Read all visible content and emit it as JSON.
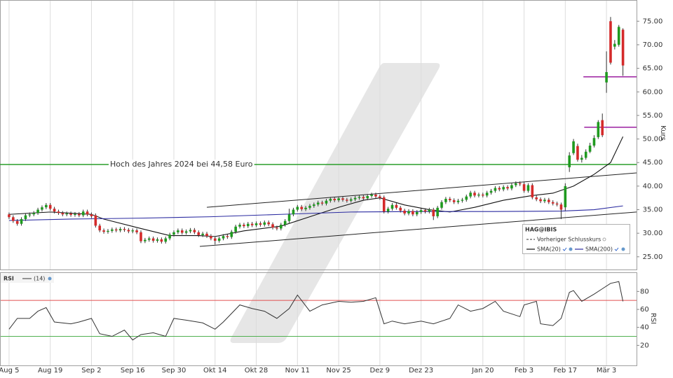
{
  "chart_data": {
    "type": "candlestick",
    "axis_label": "Kurs",
    "xlim": [
      -2.2,
      152.3
    ],
    "xticks": [
      {
        "value": 0,
        "label": "Aug 5"
      },
      {
        "value": 10,
        "label": "Aug 19"
      },
      {
        "value": 20,
        "label": "Sep 2"
      },
      {
        "value": 30,
        "label": "Sep 16"
      },
      {
        "value": 40,
        "label": "Sep 30"
      },
      {
        "value": 50,
        "label": "Okt 14"
      },
      {
        "value": 60,
        "label": "Okt 28"
      },
      {
        "value": 70,
        "label": "Nov 11"
      },
      {
        "value": 80,
        "label": "Nov 25"
      },
      {
        "value": 90,
        "label": "Dez 9"
      },
      {
        "value": 100,
        "label": "Dez 23"
      },
      {
        "value": 115,
        "label": "Jan 20"
      },
      {
        "value": 125,
        "label": "Feb 3"
      },
      {
        "value": 135,
        "label": "Feb 17"
      },
      {
        "value": 145,
        "label": "Mär 3"
      }
    ],
    "ylim": [
      22.3,
      79.5
    ],
    "yticks": [
      {
        "value": 25,
        "label": "25.00"
      },
      {
        "value": 30,
        "label": "30.00"
      },
      {
        "value": 35,
        "label": "35.00"
      },
      {
        "value": 40,
        "label": "40.00"
      },
      {
        "value": 45,
        "label": "45.00"
      },
      {
        "value": 50,
        "label": "50.00"
      },
      {
        "value": 55,
        "label": "55.00"
      },
      {
        "value": 60,
        "label": "60.00"
      },
      {
        "value": 65,
        "label": "65.00"
      },
      {
        "value": 70,
        "label": "70.00"
      },
      {
        "value": 75,
        "label": "75.00"
      }
    ],
    "up_color": "#1f9a1f",
    "down_color": "#d42a2a",
    "open": [
      34.0,
      33.4,
      32.6,
      32.0,
      33.0,
      33.8,
      34.0,
      34.3,
      35.0,
      35.5,
      36.0,
      35.2,
      34.6,
      34.3,
      34.0,
      34.2,
      33.9,
      34.1,
      33.8,
      34.6,
      34.0,
      33.8,
      31.6,
      30.6,
      30.3,
      30.5,
      30.8,
      30.6,
      30.9,
      30.7,
      30.4,
      30.6,
      30.2,
      28.3,
      28.6,
      28.9,
      28.4,
      28.7,
      28.2,
      28.9,
      29.7,
      30.2,
      30.6,
      30.1,
      30.4,
      30.7,
      30.2,
      29.6,
      29.9,
      29.4,
      28.9,
      28.4,
      28.9,
      29.4,
      29.2,
      30.3,
      31.4,
      31.8,
      31.5,
      32.0,
      31.7,
      32.1,
      31.8,
      32.3,
      31.9,
      31.2,
      31.0,
      31.8,
      32.6,
      34.0,
      35.0,
      35.6,
      35.1,
      35.4,
      35.8,
      36.1,
      36.5,
      36.3,
      36.9,
      37.3,
      37.0,
      37.4,
      37.1,
      36.9,
      37.2,
      37.5,
      37.7,
      37.4,
      37.9,
      38.2,
      37.8,
      37.6,
      34.6,
      35.2,
      36.0,
      35.4,
      34.8,
      34.2,
      34.7,
      34.0,
      34.5,
      34.9,
      34.6,
      35.0,
      33.6,
      35.4,
      36.6,
      37.3,
      37.0,
      36.6,
      36.9,
      37.1,
      37.8,
      38.6,
      38.0,
      38.2,
      38.0,
      38.6,
      39.0,
      39.6,
      39.3,
      39.8,
      39.5,
      40.2,
      40.6,
      40.4,
      39.0,
      40.2,
      37.6,
      37.2,
      36.8,
      37.1,
      36.6,
      36.3,
      36.1,
      35.5,
      44.0,
      47.0,
      48.5,
      45.6,
      46.0,
      47.3,
      48.6,
      50.4,
      54.0,
      62.0,
      75.0,
      69.6,
      70.0,
      73.2
    ],
    "high": [
      34.4,
      33.8,
      33.0,
      33.4,
      34.2,
      34.4,
      34.7,
      35.4,
      35.9,
      36.4,
      36.4,
      35.6,
      35.0,
      34.7,
      34.6,
      34.6,
      34.5,
      34.5,
      35.0,
      35.0,
      34.4,
      34.2,
      32.0,
      31.0,
      30.9,
      31.2,
      31.2,
      31.3,
      31.3,
      31.1,
      31.0,
      31.0,
      30.6,
      29.0,
      29.3,
      29.3,
      29.1,
      29.1,
      29.3,
      30.1,
      30.6,
      31.0,
      31.0,
      30.8,
      31.1,
      31.1,
      30.6,
      30.3,
      30.3,
      29.8,
      29.3,
      29.3,
      29.8,
      29.8,
      30.7,
      31.8,
      32.2,
      32.2,
      32.4,
      32.4,
      32.5,
      32.5,
      32.7,
      32.7,
      32.3,
      31.6,
      32.2,
      33.0,
      35.2,
      35.4,
      36.0,
      36.0,
      35.8,
      36.2,
      36.5,
      36.9,
      36.9,
      37.3,
      37.7,
      37.7,
      37.8,
      37.8,
      37.5,
      37.6,
      37.9,
      38.1,
      38.1,
      38.3,
      38.6,
      38.6,
      38.2,
      38.0,
      35.6,
      36.4,
      36.4,
      35.8,
      35.2,
      35.1,
      35.1,
      34.9,
      35.3,
      35.3,
      35.4,
      35.4,
      35.8,
      37.0,
      37.7,
      37.7,
      37.4,
      37.3,
      37.5,
      38.2,
      39.0,
      39.0,
      38.6,
      38.6,
      39.0,
      39.4,
      40.0,
      40.0,
      40.2,
      40.2,
      40.6,
      41.0,
      41.0,
      40.8,
      40.6,
      40.6,
      38.0,
      37.6,
      37.5,
      37.5,
      37.0,
      36.7,
      36.5,
      40.6,
      47.2,
      50.0,
      49.0,
      46.6,
      47.8,
      49.2,
      50.8,
      54.0,
      55.4,
      68.6,
      75.9,
      71.0,
      74.2,
      73.5
    ],
    "low": [
      33.0,
      32.2,
      31.6,
      31.6,
      32.6,
      33.4,
      33.6,
      33.9,
      34.6,
      35.1,
      34.8,
      34.2,
      33.9,
      33.6,
      33.6,
      33.5,
      33.5,
      33.4,
      33.4,
      33.6,
      33.2,
      31.2,
      30.2,
      29.9,
      29.9,
      30.1,
      30.2,
      30.2,
      30.3,
      30.0,
      30.0,
      29.8,
      27.9,
      27.9,
      28.2,
      28.0,
      28.0,
      27.8,
      27.8,
      28.5,
      29.3,
      29.8,
      29.7,
      29.7,
      30.0,
      29.8,
      29.2,
      29.2,
      29.0,
      28.5,
      27.6,
      28.0,
      28.5,
      28.8,
      28.8,
      29.9,
      31.0,
      31.1,
      31.1,
      31.3,
      31.3,
      31.4,
      31.4,
      31.5,
      30.8,
      30.6,
      30.6,
      31.4,
      32.2,
      33.6,
      34.6,
      34.7,
      34.7,
      35.0,
      35.4,
      35.7,
      35.9,
      35.9,
      36.5,
      36.6,
      36.6,
      36.7,
      36.5,
      36.5,
      36.8,
      37.1,
      37.0,
      37.0,
      37.5,
      37.4,
      37.1,
      34.2,
      34.2,
      34.8,
      35.0,
      34.4,
      33.8,
      33.8,
      33.6,
      33.6,
      34.1,
      34.2,
      34.2,
      32.8,
      33.2,
      35.0,
      36.2,
      36.6,
      36.2,
      36.2,
      36.5,
      36.7,
      37.4,
      37.6,
      37.6,
      37.6,
      37.6,
      38.2,
      38.6,
      38.9,
      38.9,
      39.1,
      39.1,
      39.8,
      40.0,
      38.6,
      38.6,
      37.2,
      36.8,
      36.4,
      36.4,
      36.2,
      35.9,
      35.7,
      33.0,
      34.8,
      43.0,
      46.6,
      45.2,
      45.0,
      45.6,
      47.0,
      48.2,
      50.0,
      50.4,
      59.8,
      65.8,
      69.0,
      69.6,
      63.4
    ],
    "close": [
      33.4,
      32.6,
      32.0,
      33.0,
      33.8,
      34.0,
      34.3,
      35.0,
      35.5,
      36.0,
      35.2,
      34.6,
      34.3,
      34.0,
      34.2,
      33.9,
      34.1,
      33.8,
      34.6,
      34.0,
      33.6,
      31.6,
      30.6,
      30.3,
      30.5,
      30.8,
      30.6,
      30.9,
      30.7,
      30.4,
      30.6,
      30.2,
      28.3,
      28.6,
      28.9,
      28.4,
      28.7,
      28.2,
      28.9,
      29.7,
      30.2,
      30.6,
      30.1,
      30.4,
      30.7,
      30.2,
      29.6,
      29.9,
      29.4,
      28.9,
      28.4,
      28.9,
      29.4,
      29.2,
      30.3,
      31.4,
      31.8,
      31.5,
      32.0,
      31.7,
      32.1,
      31.8,
      32.3,
      31.9,
      31.2,
      31.0,
      31.8,
      32.6,
      34.0,
      35.0,
      35.6,
      35.1,
      35.4,
      35.8,
      36.1,
      36.5,
      36.3,
      36.9,
      37.3,
      37.0,
      37.4,
      37.1,
      36.9,
      37.2,
      37.5,
      37.7,
      37.4,
      37.9,
      38.2,
      37.8,
      37.5,
      34.6,
      35.2,
      36.0,
      35.4,
      34.8,
      34.2,
      34.7,
      34.0,
      34.5,
      34.9,
      34.6,
      35.0,
      33.6,
      35.4,
      36.6,
      37.3,
      37.0,
      36.6,
      36.9,
      37.1,
      37.8,
      38.6,
      38.0,
      38.2,
      38.0,
      38.6,
      39.0,
      39.6,
      39.3,
      39.8,
      39.5,
      40.2,
      40.6,
      40.4,
      39.0,
      40.2,
      37.6,
      37.2,
      36.8,
      37.1,
      36.6,
      36.3,
      36.1,
      35.0,
      40.0,
      46.5,
      49.5,
      45.6,
      46.0,
      47.3,
      48.6,
      50.2,
      53.6,
      50.8,
      64.2,
      66.2,
      70.2,
      73.8,
      65.6
    ],
    "series": [
      {
        "name": "SMA(20)",
        "color": "#111111",
        "x": [
          0,
          10,
          20,
          23,
          32,
          39,
          46,
          50,
          57,
          66,
          73,
          80,
          86,
          90,
          96,
          102,
          107,
          113,
          120,
          127,
          132,
          137,
          142,
          146,
          149
        ],
        "values": [
          34,
          34.5,
          34,
          33,
          31,
          29.5,
          29.5,
          29.3,
          30.5,
          31.5,
          33.5,
          35.5,
          37,
          37.5,
          36,
          35,
          34.5,
          35.5,
          37,
          38,
          38.5,
          40,
          42.5,
          45,
          50.5
        ]
      },
      {
        "name": "SMA(200)",
        "color": "#2a2aa0",
        "x": [
          0,
          15,
          32,
          49,
          66,
          83,
          100,
          117,
          134,
          142,
          149
        ],
        "values": [
          32.7,
          33,
          33.2,
          33.5,
          34,
          34.5,
          34.6,
          34.6,
          34.7,
          35,
          35.8
        ]
      }
    ],
    "trendlines": [
      {
        "color": "#222222",
        "x": [
          48,
          152.3
        ],
        "values": [
          35.5,
          42.8
        ]
      },
      {
        "color": "#222222",
        "x": [
          46.3,
          152.3
        ],
        "values": [
          27.2,
          34.5
        ]
      }
    ],
    "hlines": [
      {
        "value": 44.58,
        "color": "#2a9d2a",
        "label": "Hoch des Jahres 2024 bei 44,58 Euro"
      },
      {
        "value": 63.2,
        "from": 139.4,
        "color": "#9b1fa0"
      },
      {
        "value": 52.5,
        "from": 139.6,
        "color": "#9b1fa0"
      }
    ],
    "legend": {
      "title": "HAG@IBIS",
      "previous_close": "Vorheriger Schlusskurs"
    },
    "rsi": {
      "name": "RSI",
      "period_label": "(14)",
      "axis_label": "RSI",
      "color": "#333333",
      "ylim": [
        -2.3,
        101.3
      ],
      "yticks": [
        20,
        40,
        60,
        80
      ],
      "levels": [
        {
          "value": 70,
          "color": "#e05050"
        },
        {
          "value": 30,
          "color": "#50b050"
        }
      ],
      "x": [
        0,
        2,
        5,
        7,
        9,
        11,
        15,
        17,
        20,
        22,
        25,
        28,
        30,
        32,
        35,
        38,
        40,
        43,
        47,
        50,
        52,
        56,
        59,
        62,
        65,
        68,
        70,
        73,
        76,
        80,
        83,
        86,
        89,
        91,
        93,
        96,
        100,
        103,
        107,
        109,
        112,
        115,
        118,
        120,
        124,
        125,
        128,
        129,
        132,
        134,
        136,
        137,
        139,
        142,
        144,
        146,
        148,
        149
      ],
      "values": [
        38,
        50,
        50,
        58,
        62,
        46,
        44,
        46,
        50,
        33,
        30,
        37,
        26,
        32,
        34,
        30,
        50,
        48,
        45,
        38,
        46,
        65,
        61,
        58,
        50,
        61,
        76,
        58,
        65,
        69,
        68,
        69,
        73,
        44,
        47,
        44,
        47,
        44,
        50,
        65,
        58,
        61,
        69,
        58,
        52,
        65,
        69,
        44,
        42,
        50,
        79,
        81,
        69,
        77,
        83,
        89,
        91,
        69
      ]
    }
  }
}
